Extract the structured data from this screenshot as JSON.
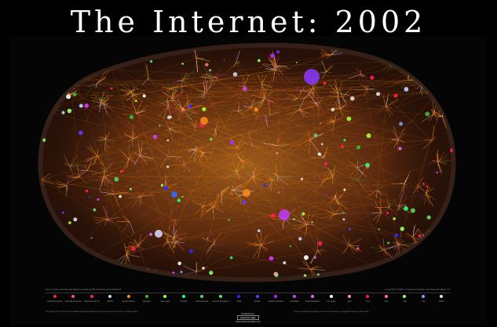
{
  "title": "The Internet: 2002",
  "credits": {
    "left": "Peer-to-Peer and Internet Mapping. Data by Bill Cheswick and Hal Burch",
    "right": "Copyright © 2002 Lumeta Corporation and Peacock Maps, Inc."
  },
  "legend": [
    {
      "label": "North America",
      "color": "#ff2a2a"
    },
    {
      "label": "Central America",
      "color": "#ff4d8a"
    },
    {
      "label": "South America",
      "color": "#ff1e5a"
    },
    {
      "label": "Africa",
      "color": "#c2d4ff"
    },
    {
      "label": "South Africa",
      "color": "#ff8a1e"
    },
    {
      "label": "Europe",
      "color": "#3db83d"
    },
    {
      "label": "Germany",
      "color": "#a8ff3a"
    },
    {
      "label": "France",
      "color": "#2aff8a"
    },
    {
      "label": "Netherlands",
      "color": "#5ad45a"
    },
    {
      "label": "United Kingdom",
      "color": "#6fd86f"
    },
    {
      "label": "Asia",
      "color": "#2a2aff"
    },
    {
      "label": "Japan",
      "color": "#6a3aff"
    },
    {
      "label": "Pacific Islands",
      "color": "#b02aff"
    },
    {
      "label": "Australia",
      "color": "#d83aff"
    },
    {
      "label": "New Zealand",
      "color": "#e06aff"
    },
    {
      "label": ".int .arpa",
      "color": "#ffffff"
    },
    {
      "label": ".gov",
      "color": "#ff9a9a"
    },
    {
      "label": ".com",
      "color": "#ff1e3a"
    },
    {
      "label": ".edu",
      "color": "#ff7a7a"
    },
    {
      "label": ".org",
      "color": "#9aff6a"
    },
    {
      "label": ".net",
      "color": "#7aa0ff"
    },
    {
      "label": "Other",
      "color": "#e0e0e0"
    }
  ],
  "footnotes": {
    "left": "This graph of the Internet was created using data gathered by traceroute probes run from a single location...",
    "right": "Lines are colored according to the top level domain or geographic region of each node..."
  },
  "publisher": {
    "line1": "Published by",
    "badge": "peacock maps",
    "line2": "www.peacockmaps.com"
  },
  "colors": {
    "background": "#000000",
    "dominant_link": "#ff8c1a",
    "secondary_link": "#8b2a8b",
    "tertiary_link": "#2f7a2f"
  }
}
